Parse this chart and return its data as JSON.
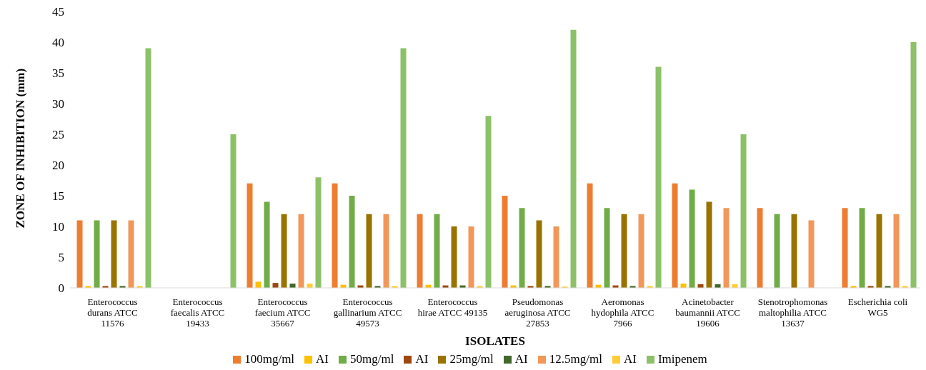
{
  "chart_data": {
    "type": "bar",
    "xlabel": "ISOLATES",
    "ylabel": "ZONE OF INHIBITION (mm)",
    "categories": [
      "Enterococcus durans ATCC 11576",
      "Enterococcus faecalis ATCC 19433",
      "Enterococcus faecium ATCC 35667",
      "Enterococcus gallinarium ATCC 49573",
      "Enterococcus hirae ATCC 49135",
      "Pseudomonas aeruginosa ATCC 27853",
      "Aeromonas hydophila ATCC 7966",
      "Acinetobacter baumannii ATCC 19606",
      "Stenotrophomonas maltophilia ATCC 13637",
      "Escherichia coli WG5"
    ],
    "series": [
      {
        "name": "100mg/ml",
        "color": "#ed7d31",
        "values": [
          11,
          0,
          17,
          17,
          12,
          15,
          17,
          17,
          13,
          13
        ]
      },
      {
        "name": "AI",
        "color": "#ffc000",
        "values": [
          0.3,
          0,
          1,
          0.5,
          0.5,
          0.4,
          0.5,
          0.7,
          0,
          0.3
        ]
      },
      {
        "name": "50mg/ml",
        "color": "#70ad47",
        "values": [
          11,
          0,
          14,
          15,
          12,
          13,
          13,
          16,
          12,
          13
        ]
      },
      {
        "name": "AI",
        "color": "#9e480e",
        "values": [
          0.3,
          0,
          0.8,
          0.4,
          0.4,
          0.3,
          0.4,
          0.6,
          0,
          0.3
        ]
      },
      {
        "name": "25mg/ml",
        "color": "#997300",
        "values": [
          11,
          0,
          12,
          12,
          10,
          11,
          12,
          14,
          12,
          12
        ]
      },
      {
        "name": "AI",
        "color": "#43682b",
        "values": [
          0.3,
          0,
          0.7,
          0.3,
          0.4,
          0.3,
          0.3,
          0.6,
          0,
          0.3
        ]
      },
      {
        "name": "12.5mg/ml",
        "color": "#f1975a",
        "values": [
          11,
          0,
          12,
          12,
          10,
          10,
          12,
          13,
          11,
          12
        ]
      },
      {
        "name": "AI",
        "color": "#ffcd33",
        "values": [
          0.3,
          0,
          0.7,
          0.3,
          0.3,
          0.2,
          0.3,
          0.6,
          0,
          0.3
        ]
      },
      {
        "name": "Imipenem",
        "color": "#8cc168",
        "values": [
          39,
          25,
          18,
          39,
          28,
          42,
          36,
          25,
          0,
          40
        ]
      }
    ],
    "ylim": [
      0,
      45
    ],
    "yticks": [
      0,
      5,
      10,
      15,
      20,
      25,
      30,
      35,
      40,
      45
    ],
    "grid": false,
    "legend": "bottom"
  }
}
